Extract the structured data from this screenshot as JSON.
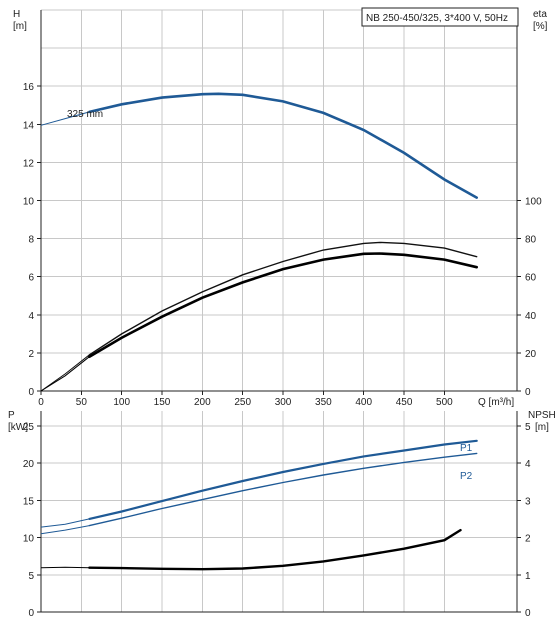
{
  "chart_data": [
    {
      "type": "line",
      "title": "NB 250-450/325, 3*400 V, 50Hz",
      "xlabel": "Q [m³/h]",
      "ylabel_left": [
        "H",
        "[m]"
      ],
      "ylabel_right": [
        "eta",
        "[%]"
      ],
      "xlim": [
        0,
        590
      ],
      "x_ticks": [
        0,
        50,
        100,
        150,
        200,
        250,
        300,
        350,
        400,
        450,
        500
      ],
      "ylim_left": [
        0,
        20
      ],
      "ylim_right": [
        0,
        200
      ],
      "y_ticks_left": [
        0,
        2,
        4,
        6,
        8,
        10,
        12,
        14,
        16
      ],
      "y_ticks_right": [
        0,
        20,
        40,
        60,
        80,
        100
      ],
      "grid": true,
      "annotations": [
        "325 mm"
      ],
      "series": [
        {
          "name": "325 mm",
          "axis": "left",
          "color": "#1f5a96",
          "x": [
            0,
            30,
            60,
            100,
            150,
            200,
            220,
            250,
            300,
            350,
            400,
            450,
            500,
            540
          ],
          "y": [
            13.95,
            14.3,
            14.65,
            15.05,
            15.4,
            15.58,
            15.6,
            15.55,
            15.2,
            14.6,
            13.7,
            12.5,
            11.1,
            10.15
          ]
        },
        {
          "name": "",
          "axis": "right",
          "color": "#111111",
          "x": [
            0,
            30,
            60,
            100,
            150,
            200,
            250,
            300,
            350,
            400,
            420,
            450,
            500,
            540
          ],
          "y": [
            0,
            9,
            19,
            30,
            42,
            52,
            61,
            68,
            74,
            77.5,
            78,
            77.5,
            75,
            70.5
          ]
        },
        {
          "name": "",
          "axis": "right",
          "color": "#000000",
          "x": [
            0,
            30,
            60,
            100,
            150,
            200,
            250,
            300,
            350,
            400,
            420,
            450,
            500,
            540
          ],
          "y": [
            0,
            8,
            18,
            28,
            39,
            49,
            57,
            64,
            69,
            72,
            72.2,
            71.5,
            69,
            65
          ]
        }
      ]
    },
    {
      "type": "line",
      "title": "",
      "xlabel": "",
      "ylabel_left": [
        "P",
        "[kW]"
      ],
      "ylabel_right": [
        "NPSH",
        "[m]"
      ],
      "xlim": [
        0,
        590
      ],
      "ylim_left": [
        0,
        27
      ],
      "ylim_right": [
        0,
        5.4
      ],
      "y_ticks_left": [
        0,
        5,
        10,
        15,
        20,
        25
      ],
      "y_ticks_right": [
        0,
        1,
        2,
        3,
        4,
        5
      ],
      "grid": true,
      "series": [
        {
          "name": "P1",
          "axis": "left",
          "color": "#1f5a96",
          "x": [
            0,
            30,
            60,
            100,
            150,
            200,
            250,
            300,
            350,
            400,
            450,
            500,
            540
          ],
          "y": [
            11.4,
            11.8,
            12.5,
            13.5,
            14.9,
            16.3,
            17.6,
            18.8,
            19.9,
            20.9,
            21.7,
            22.5,
            23.0
          ]
        },
        {
          "name": "P2",
          "axis": "left",
          "color": "#1f5a96",
          "x": [
            0,
            30,
            60,
            100,
            150,
            200,
            250,
            300,
            350,
            400,
            450,
            500,
            540
          ],
          "y": [
            10.5,
            11.0,
            11.6,
            12.6,
            13.9,
            15.1,
            16.3,
            17.4,
            18.4,
            19.3,
            20.1,
            20.8,
            21.3
          ]
        },
        {
          "name": "",
          "axis": "right",
          "color": "#000000",
          "x": [
            0,
            30,
            60,
            100,
            150,
            200,
            250,
            300,
            350,
            400,
            450,
            500,
            520
          ],
          "y": [
            1.19,
            1.2,
            1.19,
            1.18,
            1.16,
            1.15,
            1.17,
            1.24,
            1.36,
            1.52,
            1.7,
            1.93,
            2.2
          ]
        }
      ]
    }
  ]
}
